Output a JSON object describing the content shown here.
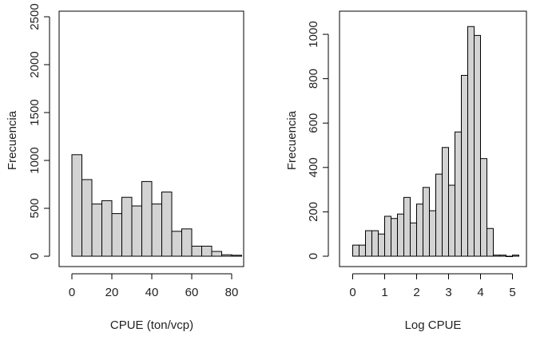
{
  "chart_data": [
    {
      "type": "bar",
      "subtype": "histogram",
      "title": "",
      "xlabel": "CPUE (ton/vcp)",
      "ylabel": "Frecuencia",
      "bin_edges": [
        0,
        5,
        10,
        15,
        20,
        25,
        30,
        35,
        40,
        45,
        50,
        55,
        60,
        65,
        70,
        75,
        80,
        85
      ],
      "values": [
        1060,
        800,
        545,
        580,
        445,
        615,
        525,
        780,
        545,
        670,
        260,
        285,
        105,
        105,
        50,
        15,
        10
      ],
      "xticks": [
        0,
        20,
        40,
        60,
        80
      ],
      "yticks": [
        0,
        500,
        1000,
        1500,
        2000,
        2500
      ],
      "xlim": [
        0,
        85
      ],
      "ylim": [
        0,
        2500
      ],
      "grid": false,
      "bar_color": "#d3d3d3",
      "edge_color": "#000000"
    },
    {
      "type": "bar",
      "subtype": "histogram",
      "title": "",
      "xlabel": "Log CPUE",
      "ylabel": "Frecuencia",
      "bin_edges": [
        0,
        0.2,
        0.4,
        0.6,
        0.8,
        1.0,
        1.2,
        1.4,
        1.6,
        1.8,
        2.0,
        2.2,
        2.4,
        2.6,
        2.8,
        3.0,
        3.2,
        3.4,
        3.6,
        3.8,
        4.0,
        4.2,
        4.4,
        4.6,
        4.8,
        5.0,
        5.2
      ],
      "values": [
        50,
        50,
        115,
        115,
        100,
        180,
        170,
        190,
        265,
        150,
        235,
        310,
        205,
        370,
        490,
        320,
        560,
        815,
        1035,
        995,
        440,
        125,
        5,
        5,
        0,
        5
      ],
      "xticks": [
        0,
        1,
        2,
        3,
        4,
        5
      ],
      "yticks": [
        0,
        200,
        400,
        600,
        800,
        1000
      ],
      "xlim": [
        0,
        5.2
      ],
      "ylim": [
        0,
        1000
      ],
      "grid": false,
      "bar_color": "#d3d3d3",
      "edge_color": "#000000"
    }
  ]
}
